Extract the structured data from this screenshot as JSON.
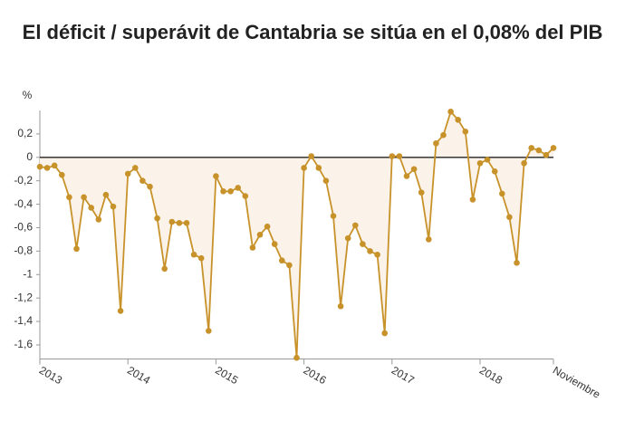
{
  "chart_data": {
    "type": "line",
    "title": "El déficit / superávit de Cantabria se sitúa en el 0,08% del PIB",
    "y_label": "%",
    "categories": [
      "2013",
      null,
      null,
      null,
      null,
      null,
      null,
      null,
      null,
      null,
      null,
      null,
      "2014",
      null,
      null,
      null,
      null,
      null,
      null,
      null,
      null,
      null,
      null,
      null,
      "2015",
      null,
      null,
      null,
      null,
      null,
      null,
      null,
      null,
      null,
      null,
      null,
      "2016",
      null,
      null,
      null,
      null,
      null,
      null,
      null,
      null,
      null,
      null,
      null,
      "2017",
      null,
      null,
      null,
      null,
      null,
      null,
      null,
      null,
      null,
      null,
      null,
      "2018",
      null,
      null,
      null,
      null,
      null,
      null,
      null,
      null,
      null,
      "Noviembre"
    ],
    "series": [
      {
        "name": "Déficit / superávit",
        "color": "#c8922a",
        "area_color": "#fbf3ea",
        "values": [
          -0.08,
          -0.09,
          -0.07,
          -0.15,
          -0.34,
          -0.78,
          -0.34,
          -0.43,
          -0.53,
          -0.32,
          -0.42,
          -1.31,
          -0.14,
          -0.09,
          -0.2,
          -0.25,
          -0.52,
          -0.95,
          -0.55,
          -0.56,
          -0.56,
          -0.83,
          -0.86,
          -1.48,
          -0.16,
          -0.29,
          -0.29,
          -0.26,
          -0.33,
          -0.77,
          -0.66,
          -0.59,
          -0.74,
          -0.88,
          -0.92,
          -1.71,
          -0.09,
          0.01,
          -0.09,
          -0.2,
          -0.5,
          -1.27,
          -0.69,
          -0.58,
          -0.74,
          -0.8,
          -0.83,
          -1.5,
          0.01,
          0.01,
          -0.16,
          -0.1,
          -0.3,
          -0.7,
          0.12,
          0.19,
          0.39,
          0.32,
          0.22,
          -0.36,
          -0.05,
          -0.02,
          -0.12,
          -0.31,
          -0.51,
          -0.9,
          -0.05,
          0.08,
          0.06,
          0.02,
          0.08
        ]
      }
    ],
    "ylim": [
      -1.72,
      0.4
    ],
    "yticks": [
      {
        "value": 0.2,
        "label": "0,2"
      },
      0,
      {
        "value": -0.2,
        "label": "-0,2"
      },
      {
        "value": -0.4,
        "label": "-0,4"
      },
      {
        "value": -0.6,
        "label": "-0,6"
      },
      {
        "value": -0.8,
        "label": "-0,8"
      },
      -1,
      {
        "value": -1.2,
        "label": "-1,2"
      },
      {
        "value": -1.4,
        "label": "-1,4"
      },
      {
        "value": -1.6,
        "label": "-1,6"
      }
    ],
    "zero_line": true
  }
}
